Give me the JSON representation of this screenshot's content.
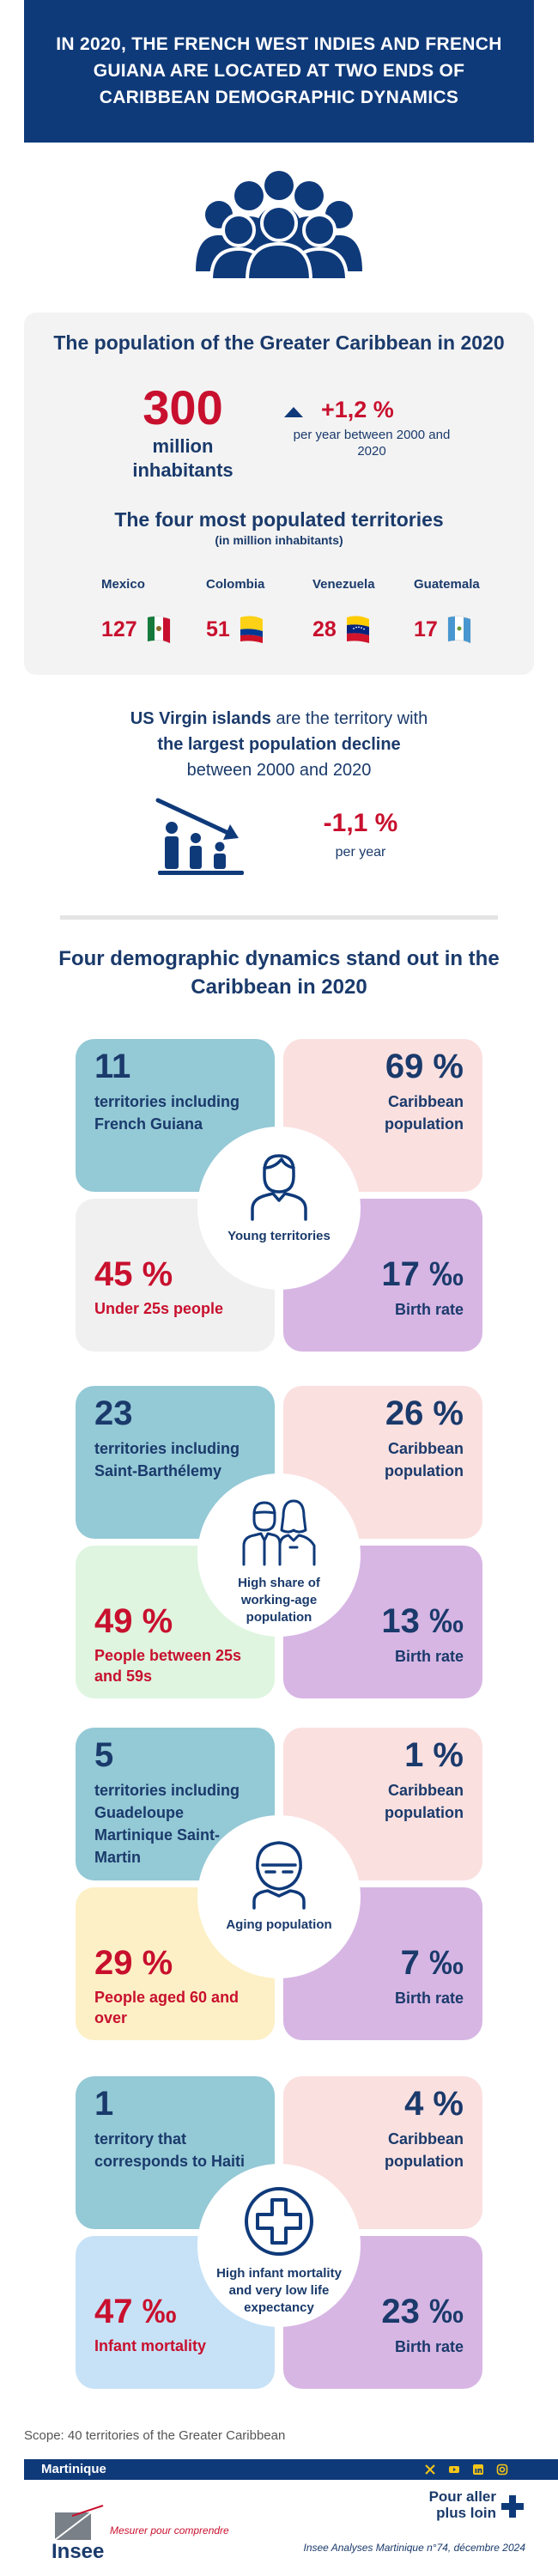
{
  "header": {
    "title": "IN 2020, THE FRENCH WEST INDIES AND FRENCH GUIANA ARE LOCATED AT TWO ENDS OF CARIBBEAN DEMOGRAPHIC DYNAMICS"
  },
  "summary": {
    "title": "The population of the Greater Caribbean in 2020",
    "population_value": "300",
    "population_unit": "million inhabitants",
    "growth_value": "+1,2 %",
    "growth_period": "per year between 2000 and 2020",
    "top_title": "The four most populated territories",
    "top_subtitle": "(in million inhabitants)",
    "territories": [
      {
        "name": "Mexico",
        "value": "127",
        "flag": "mexico-flag"
      },
      {
        "name": "Colombia",
        "value": "51",
        "flag": "colombia-flag"
      },
      {
        "name": "Venezuela",
        "value": "28",
        "flag": "venezuela-flag"
      },
      {
        "name": "Guatemala",
        "value": "17",
        "flag": "guatemala-flag"
      }
    ]
  },
  "decline": {
    "highlight": "US Virgin islands",
    "text1": " are the territory with",
    "text2": "the largest population decline",
    "text3": "between 2000 and 2020",
    "value": "-1,1 %",
    "period": "per year"
  },
  "dynamics": {
    "title": "Four demographic dynamics stand out in the Caribbean in 2020",
    "blocks": [
      {
        "count": "11",
        "count_desc": "territories including French Guiana",
        "share": "69 %",
        "share_desc": "Caribbean population",
        "center": "Young territories",
        "icon": "young-person-icon",
        "stat": "45 %",
        "stat_desc": "Under 25s people",
        "birth": "17 ‰",
        "birth_desc": "Birth rate",
        "stat_color": "#f0f0f0"
      },
      {
        "count": "23",
        "count_desc": "territories including Saint-Barthélemy",
        "share": "26 %",
        "share_desc": "Caribbean population",
        "center": "High share of working-age population",
        "icon": "workers-icon",
        "stat": "49 %",
        "stat_desc": "People between 25s and 59s",
        "birth": "13 ‰",
        "birth_desc": "Birth rate",
        "stat_color": "#dff5e0"
      },
      {
        "count": "5",
        "count_desc": "territories including Guadeloupe Martinique Saint-Martin",
        "share": "1 %",
        "share_desc": "Caribbean population",
        "center": "Aging population",
        "icon": "elderly-person-icon",
        "stat": "29 %",
        "stat_desc": "People aged 60 and over",
        "birth": "7 ‰",
        "birth_desc": "Birth rate",
        "stat_color": "#fdf0c6"
      },
      {
        "count": "1",
        "count_desc": "territory that corresponds to Haiti",
        "share": "4 %",
        "share_desc": "Caribbean population",
        "center": "High infant mortality and very low life expectancy",
        "icon": "medical-cross-icon",
        "stat": "47 ‰",
        "stat_desc": "Infant mortality",
        "birth": "23 ‰",
        "birth_desc": "Birth rate",
        "stat_color": "#c7e2f7"
      }
    ]
  },
  "footer": {
    "scope": "Scope: 40 territories of the Greater Caribbean",
    "region": "Martinique",
    "logo_text": "Insee",
    "tagline": "Mesurer pour comprendre",
    "more": "Pour aller plus loin",
    "reference": "Insee Analyses Martinique n°74, décembre 2024"
  },
  "colors": {
    "navy": "#0f3a7a",
    "red": "#c8102e",
    "teal": "#94c9d6",
    "pink": "#fbe0e0",
    "lilac": "#d7b6e4"
  }
}
